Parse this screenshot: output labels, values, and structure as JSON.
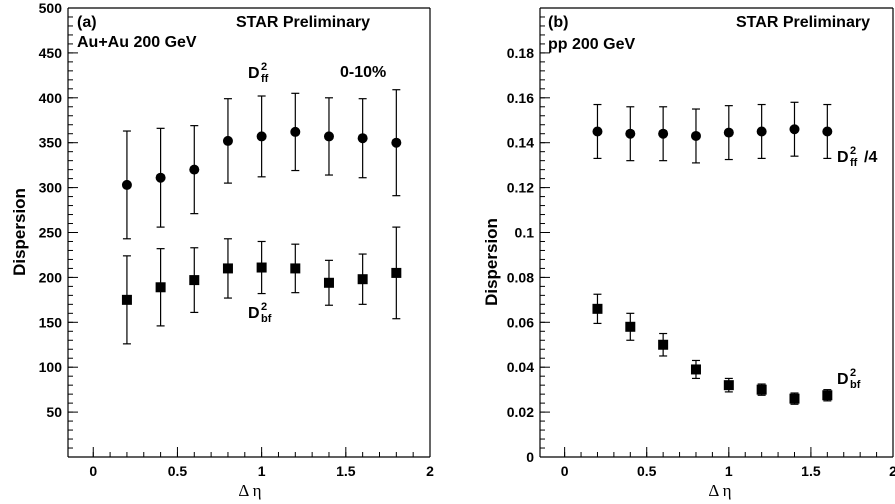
{
  "chart_data": [
    {
      "type": "scatter",
      "panel_label": "(a)",
      "header": "STAR Preliminary",
      "system": "Au+Au 200 GeV",
      "centrality": "0-10%",
      "xlabel": "Δ η",
      "ylabel": "Dispersion",
      "xlim": [
        -0.15,
        2.0
      ],
      "ylim": [
        0,
        500
      ],
      "xticks": [
        0,
        0.5,
        1,
        1.5,
        2
      ],
      "xtick_labels": [
        "0",
        "0.5",
        "1",
        "1.5",
        "2"
      ],
      "yticks": [
        50,
        100,
        150,
        200,
        250,
        300,
        350,
        400,
        450,
        500
      ],
      "ytick_labels": [
        "50",
        "100",
        "150",
        "200",
        "250",
        "300",
        "350",
        "400",
        "450",
        "500"
      ],
      "series": [
        {
          "name": "D",
          "sub": "ff",
          "sup": "2",
          "suffix": "",
          "marker": "circle",
          "x": [
            0.2,
            0.4,
            0.6,
            0.8,
            1.0,
            1.2,
            1.4,
            1.6,
            1.8
          ],
          "y": [
            303,
            311,
            320,
            352,
            357,
            362,
            357,
            355,
            350
          ],
          "err": [
            60,
            55,
            49,
            47,
            45,
            43,
            43,
            44,
            59
          ]
        },
        {
          "name": "D",
          "sub": "bf",
          "sup": "2",
          "suffix": "",
          "marker": "square",
          "x": [
            0.2,
            0.4,
            0.6,
            0.8,
            1.0,
            1.2,
            1.4,
            1.6,
            1.8
          ],
          "y": [
            175,
            189,
            197,
            210,
            211,
            210,
            194,
            198,
            205
          ],
          "err": [
            49,
            43,
            36,
            33,
            29,
            27,
            25,
            28,
            51
          ]
        }
      ]
    },
    {
      "type": "scatter",
      "panel_label": "(b)",
      "header": "STAR Preliminary",
      "system": "pp 200 GeV",
      "xlabel": "Δ η",
      "ylabel": "Dispersion",
      "xlim": [
        -0.15,
        2.0
      ],
      "ylim": [
        0,
        0.2
      ],
      "xticks": [
        0,
        0.5,
        1,
        1.5,
        2
      ],
      "xtick_labels": [
        "0",
        "0.5",
        "1",
        "1.5",
        "2"
      ],
      "yticks": [
        0,
        0.02,
        0.04,
        0.06,
        0.08,
        0.1,
        0.12,
        0.14,
        0.16,
        0.18
      ],
      "ytick_labels": [
        "0",
        "0.02",
        "0.04",
        "0.06",
        "0.08",
        "0.1",
        "0.12",
        "0.14",
        "0.16",
        "0.18"
      ],
      "series": [
        {
          "name": "D",
          "sub": "ff",
          "sup": "2",
          "suffix": "/4",
          "marker": "circle",
          "x": [
            0.2,
            0.4,
            0.6,
            0.8,
            1.0,
            1.2,
            1.4,
            1.6
          ],
          "y": [
            0.145,
            0.144,
            0.144,
            0.143,
            0.1445,
            0.145,
            0.146,
            0.145
          ],
          "err": [
            0.012,
            0.012,
            0.012,
            0.012,
            0.012,
            0.012,
            0.012,
            0.012
          ]
        },
        {
          "name": "D",
          "sub": "bf",
          "sup": "2",
          "suffix": "",
          "marker": "square",
          "x": [
            0.2,
            0.4,
            0.6,
            0.8,
            1.0,
            1.2,
            1.4,
            1.6
          ],
          "y": [
            0.066,
            0.058,
            0.05,
            0.039,
            0.032,
            0.03,
            0.026,
            0.0275
          ],
          "err": [
            0.0065,
            0.006,
            0.005,
            0.004,
            0.003,
            0.0025,
            0.0025,
            0.0025
          ]
        }
      ]
    }
  ]
}
